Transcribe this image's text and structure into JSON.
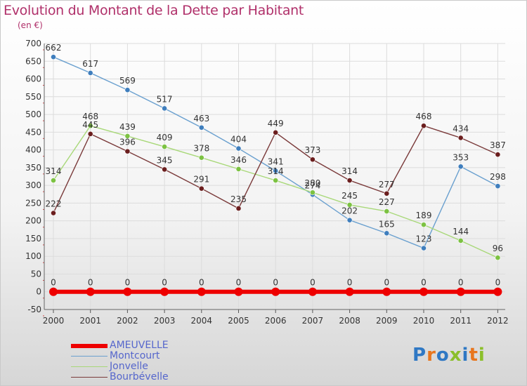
{
  "header": {
    "title": "Evolution du Montant de la Dette par Habitant",
    "unit": "(en €)"
  },
  "logo": {
    "text": "Proxiti",
    "colors": [
      "#2f78c4",
      "#e8761e",
      "#2f78c4",
      "#8bbf2a",
      "#2f78c4",
      "#e8761e",
      "#8bbf2a"
    ]
  },
  "chart_data": {
    "type": "line",
    "title": "Evolution du Montant de la Dette par Habitant",
    "ylabel": "(en €)",
    "xlabel": "",
    "x": [
      "2000",
      "2001",
      "2002",
      "2003",
      "2004",
      "2005",
      "2006",
      "2007",
      "2008",
      "2009",
      "2010",
      "2011",
      "2012"
    ],
    "ylim": [
      -50,
      700
    ],
    "yticks": [
      -50,
      0,
      50,
      100,
      150,
      200,
      250,
      300,
      350,
      400,
      450,
      500,
      550,
      600,
      650,
      700
    ],
    "grid": true,
    "legend_position": "bottom-left",
    "series": [
      {
        "name": "AMEUVELLE",
        "color": "#ee0000",
        "values": [
          0,
          0,
          0,
          0,
          0,
          0,
          0,
          0,
          0,
          0,
          0,
          0,
          0
        ],
        "labels": [
          "0",
          "0",
          "0",
          "0",
          "0",
          "0",
          "0",
          "0",
          "0",
          "0",
          "0",
          "0",
          "0"
        ]
      },
      {
        "name": "Montcourt",
        "color": "#6aa0cf",
        "marker": "#3f7ebd",
        "values": [
          662,
          617,
          569,
          517,
          463,
          404,
          341,
          274,
          202,
          165,
          123,
          353,
          298
        ],
        "labels": [
          "662",
          "617",
          "569",
          "517",
          "463",
          "404",
          "341",
          "274",
          "202",
          "165",
          "123",
          "353",
          "298"
        ]
      },
      {
        "name": "Jonvelle",
        "color": "#a8d878",
        "marker": "#7cc242",
        "values": [
          314,
          468,
          439,
          409,
          378,
          346,
          314,
          280,
          245,
          227,
          189,
          144,
          96
        ],
        "labels": [
          "314",
          "468",
          "439",
          "409",
          "378",
          "346",
          "314",
          "280",
          "245",
          "227",
          "189",
          "144",
          "96"
        ]
      },
      {
        "name": "Bourbévelle",
        "color": "#7a3a3a",
        "marker": "#6b1e1e",
        "values": [
          222,
          445,
          396,
          345,
          291,
          235,
          449,
          373,
          314,
          277,
          468,
          434,
          387
        ],
        "labels": [
          "222",
          "445",
          "396",
          "345",
          "291",
          "235",
          "449",
          "373",
          "314",
          "277",
          "468",
          "434",
          "387"
        ]
      }
    ]
  }
}
